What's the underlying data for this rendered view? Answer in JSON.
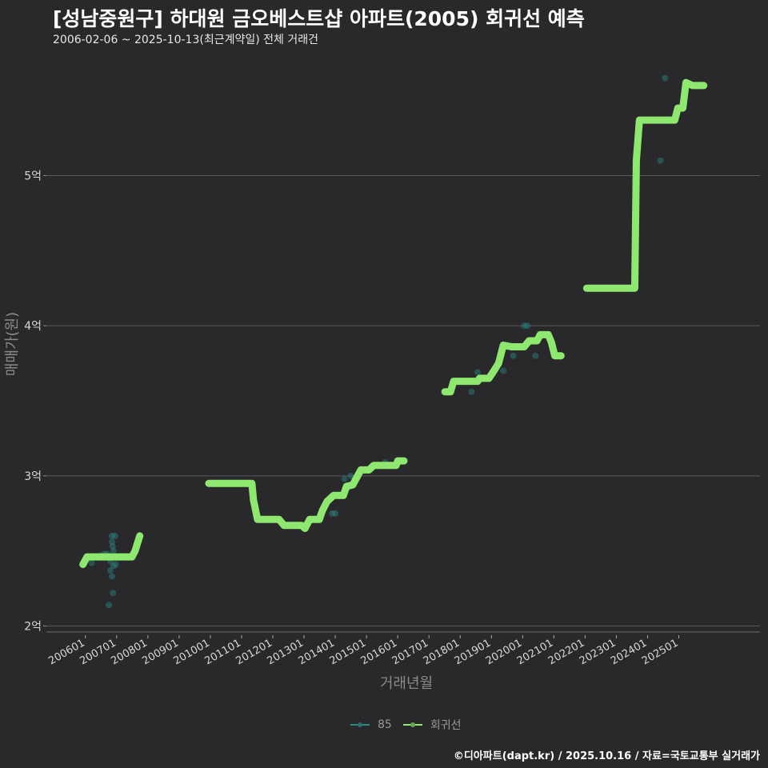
{
  "title": "[성남중원구] 하대원 금오베스트샵 아파트(2005) 회귀선 예측",
  "subtitle": "2006-02-06 ~ 2025-10-13(최근계약일) 전체 거래건",
  "caption": "©디아파트(dapt.kr) / 2025.10.16 / 자료=국토교통부 실거래가",
  "chart_data": {
    "type": "line",
    "xlabel": "거래년월",
    "ylabel": "매매가(원)",
    "x_ticks": [
      "200601",
      "200701",
      "200801",
      "200901",
      "201001",
      "201101",
      "201201",
      "201301",
      "201401",
      "201501",
      "201601",
      "201701",
      "201801",
      "201901",
      "202001",
      "202101",
      "202201",
      "202301",
      "202401",
      "202501"
    ],
    "y_ticks": [
      {
        "value": 2,
        "label": "2억"
      },
      {
        "value": 3,
        "label": "3억"
      },
      {
        "value": 4,
        "label": "4억"
      },
      {
        "value": 5,
        "label": "5억"
      }
    ],
    "xlim": [
      2004.75,
      2027.6
    ],
    "ylim": [
      1.96,
      5.85
    ],
    "grid": true,
    "legend_position": "bottom",
    "colors": {
      "85": "#2a8a86",
      "회귀선": "#8ee86f"
    },
    "series": [
      {
        "name": "85",
        "type": "scatter",
        "points": [
          [
            2006.3,
            2.46
          ],
          [
            2006.5,
            2.47
          ],
          [
            2006.6,
            2.48
          ],
          [
            2006.7,
            2.48
          ],
          [
            2006.75,
            2.46
          ],
          [
            2006.8,
            2.43
          ],
          [
            2006.8,
            2.37
          ],
          [
            2006.85,
            2.6
          ],
          [
            2006.85,
            2.56
          ],
          [
            2006.87,
            2.53
          ],
          [
            2006.9,
            2.5
          ],
          [
            2006.9,
            2.4
          ],
          [
            2006.85,
            2.33
          ],
          [
            2006.88,
            2.22
          ],
          [
            2006.75,
            2.14
          ],
          [
            2006.95,
            2.6
          ],
          [
            2006.97,
            2.41
          ],
          [
            2006.2,
            2.42
          ],
          [
            2013.9,
            2.75
          ],
          [
            2014.0,
            2.75
          ],
          [
            2014.3,
            2.98
          ],
          [
            2014.5,
            3.0
          ],
          [
            2015.4,
            3.07
          ],
          [
            2015.6,
            3.09
          ],
          [
            2018.36,
            3.56
          ],
          [
            2018.56,
            3.69
          ],
          [
            2019.38,
            3.7
          ],
          [
            2019.7,
            3.8
          ],
          [
            2020.05,
            4.0
          ],
          [
            2020.15,
            4.0
          ],
          [
            2020.41,
            3.8
          ],
          [
            2024.41,
            5.1
          ],
          [
            2024.56,
            5.65
          ]
        ]
      },
      {
        "name": "회귀선",
        "type": "line",
        "segments": [
          [
            [
              2005.92,
              2.41
            ],
            [
              2006.05,
              2.46
            ],
            [
              2007.49,
              2.46
            ],
            [
              2007.59,
              2.5
            ],
            [
              2007.74,
              2.6
            ]
          ],
          [
            [
              2009.95,
              2.95
            ],
            [
              2011.33,
              2.95
            ],
            [
              2011.38,
              2.84
            ],
            [
              2011.51,
              2.71
            ],
            [
              2012.2,
              2.71
            ],
            [
              2012.36,
              2.67
            ],
            [
              2012.92,
              2.67
            ],
            [
              2013.03,
              2.65
            ],
            [
              2013.18,
              2.71
            ],
            [
              2013.49,
              2.71
            ],
            [
              2013.59,
              2.77
            ],
            [
              2013.74,
              2.83
            ],
            [
              2013.95,
              2.87
            ],
            [
              2014.26,
              2.87
            ],
            [
              2014.36,
              2.93
            ],
            [
              2014.56,
              2.94
            ],
            [
              2014.82,
              3.04
            ],
            [
              2015.08,
              3.04
            ],
            [
              2015.23,
              3.07
            ],
            [
              2015.95,
              3.07
            ],
            [
              2016.0,
              3.1
            ],
            [
              2016.2,
              3.1
            ]
          ],
          [
            [
              2017.51,
              3.56
            ],
            [
              2017.69,
              3.56
            ],
            [
              2017.79,
              3.63
            ],
            [
              2018.56,
              3.63
            ],
            [
              2018.62,
              3.65
            ],
            [
              2018.92,
              3.65
            ],
            [
              2019.08,
              3.7
            ],
            [
              2019.23,
              3.75
            ],
            [
              2019.38,
              3.87
            ],
            [
              2019.64,
              3.86
            ],
            [
              2020.05,
              3.86
            ],
            [
              2020.21,
              3.9
            ],
            [
              2020.46,
              3.9
            ],
            [
              2020.56,
              3.94
            ],
            [
              2020.82,
              3.94
            ],
            [
              2020.92,
              3.89
            ],
            [
              2021.03,
              3.8
            ],
            [
              2021.23,
              3.8
            ]
          ],
          [
            [
              2022.05,
              4.25
            ],
            [
              2023.59,
              4.25
            ],
            [
              2023.64,
              5.1
            ],
            [
              2023.74,
              5.37
            ],
            [
              2024.87,
              5.37
            ],
            [
              2024.97,
              5.45
            ],
            [
              2025.13,
              5.45
            ],
            [
              2025.23,
              5.62
            ],
            [
              2025.44,
              5.6
            ],
            [
              2025.8,
              5.6
            ]
          ]
        ]
      }
    ]
  }
}
